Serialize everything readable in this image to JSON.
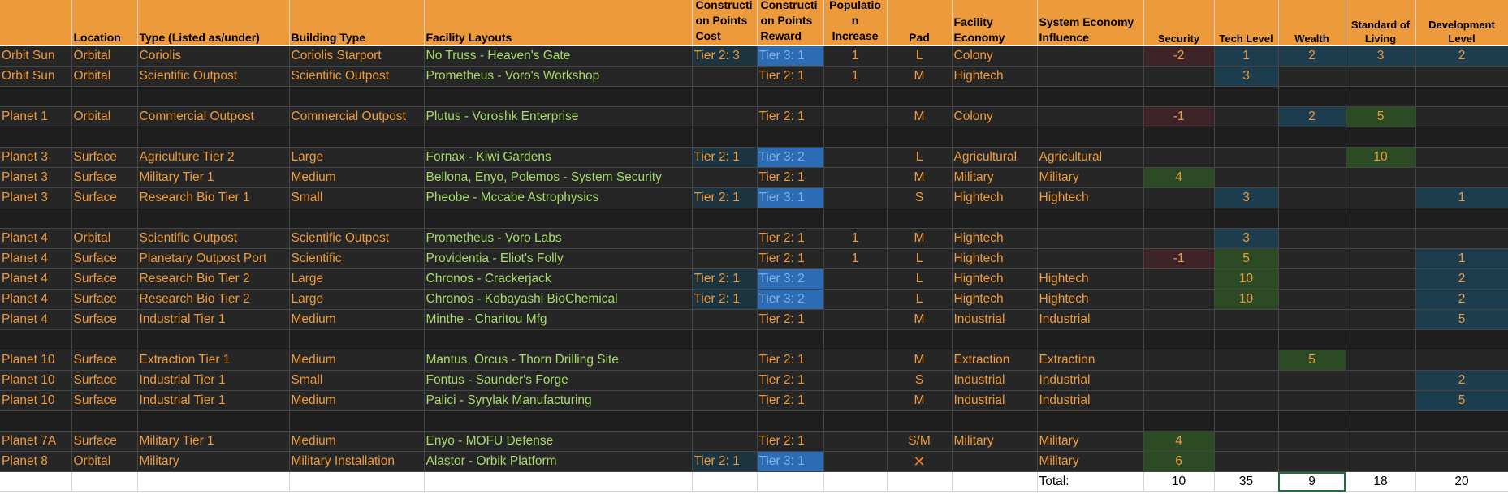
{
  "headers": {
    "col_a": "",
    "location": "Location",
    "type": "Type (Listed as/under)",
    "building": "Building Type",
    "layouts": "Facility Layouts",
    "cp_cost": "Constructi on Points Cost",
    "cp_reward": "Constructi on Points Reward",
    "pop": "Initial Populatio n Increase",
    "pad": "Pad",
    "economy": "Facility Economy",
    "influence": "System Economy Influence",
    "security": "Security",
    "tech": "Tech Level",
    "wealth": "Wealth",
    "sol": "Standard of Living",
    "dev": "Development Level"
  },
  "rows": [
    {
      "body": "Orbit Sun",
      "location": "Orbital",
      "type": "Coriolis",
      "building": "Coriolis Starport",
      "layout": "No Truss - Heaven's Gate",
      "cost": "Tier 2: 3",
      "reward": "Tier 3: 1",
      "pop": "1",
      "pad": "L",
      "economy": "Colony",
      "influence": "",
      "security": "-2",
      "tech": "1",
      "wealth": "2",
      "sol": "3",
      "dev": "2"
    },
    {
      "body": "Orbit Sun",
      "location": "Orbital",
      "type": "Scientific Outpost",
      "building": "Scientific Outpost",
      "layout": "Prometheus - Voro's Workshop",
      "cost": "",
      "reward": "Tier 2: 1",
      "pop": "1",
      "pad": "M",
      "economy": "Hightech",
      "influence": "",
      "security": "",
      "tech": "3",
      "wealth": "",
      "sol": "",
      "dev": ""
    },
    {
      "blank": true
    },
    {
      "body": "Planet 1",
      "location": "Orbital",
      "type": "Commercial Outpost",
      "building": "Commercial Outpost",
      "layout": "Plutus - Voroshk Enterprise",
      "cost": "",
      "reward": "Tier 2: 1",
      "pop": "",
      "pad": "M",
      "economy": "Colony",
      "influence": "",
      "security": "-1",
      "tech": "",
      "wealth": "2",
      "sol": "5",
      "dev": ""
    },
    {
      "blank": true
    },
    {
      "body": "Planet 3",
      "location": "Surface",
      "type": "Agriculture Tier 2",
      "building": "Large",
      "layout": "Fornax - Kiwi Gardens",
      "cost": "Tier 2: 1",
      "reward": "Tier 3: 2",
      "pop": "",
      "pad": "L",
      "economy": "Agricultural",
      "influence": "Agricultural",
      "security": "",
      "tech": "",
      "wealth": "",
      "sol": "10",
      "dev": ""
    },
    {
      "body": "Planet 3",
      "location": "Surface",
      "type": "Military Tier 1",
      "building": "Medium",
      "layout": "Bellona, Enyo, Polemos - System Security",
      "cost": "",
      "reward": "Tier 2: 1",
      "pop": "",
      "pad": "M",
      "economy": "Military",
      "influence": "Military",
      "security": "4",
      "tech": "",
      "wealth": "",
      "sol": "",
      "dev": ""
    },
    {
      "body": "Planet 3",
      "location": "Surface",
      "type": "Research Bio Tier 1",
      "building": "Small",
      "layout": "Pheobe - Mccabe Astrophysics",
      "cost": "Tier 2: 1",
      "reward": "Tier 3: 1",
      "pop": "",
      "pad": "S",
      "economy": "Hightech",
      "influence": "Hightech",
      "security": "",
      "tech": "3",
      "wealth": "",
      "sol": "",
      "dev": "1"
    },
    {
      "blank": true
    },
    {
      "body": "Planet 4",
      "location": "Orbital",
      "type": "Scientific Outpost",
      "building": "Scientific Outpost",
      "layout": "Prometheus - Voro Labs",
      "cost": "",
      "reward": "Tier 2: 1",
      "pop": "1",
      "pad": "M",
      "economy": "Hightech",
      "influence": "",
      "security": "",
      "tech": "3",
      "wealth": "",
      "sol": "",
      "dev": ""
    },
    {
      "body": "Planet 4",
      "location": "Surface",
      "type": "Planetary Outpost Port",
      "building": "Scientific",
      "layout": "Providentia - Eliot's Folly",
      "cost": "",
      "reward": "Tier 2: 1",
      "pop": "1",
      "pad": "L",
      "economy": "Hightech",
      "influence": "",
      "security": "-1",
      "tech": "5",
      "wealth": "",
      "sol": "",
      "dev": "1"
    },
    {
      "body": "Planet 4",
      "location": "Surface",
      "type": "Research Bio Tier 2",
      "building": "Large",
      "layout": "Chronos - Crackerjack",
      "cost": "Tier 2: 1",
      "reward": "Tier 3: 2",
      "pop": "",
      "pad": "L",
      "economy": "Hightech",
      "influence": "Hightech",
      "security": "",
      "tech": "10",
      "wealth": "",
      "sol": "",
      "dev": "2"
    },
    {
      "body": "Planet 4",
      "location": "Surface",
      "type": "Research Bio Tier 2",
      "building": "Large",
      "layout": "Chronos - Kobayashi BioChemical",
      "cost": "Tier 2: 1",
      "reward": "Tier 3: 2",
      "pop": "",
      "pad": "L",
      "economy": "Hightech",
      "influence": "Hightech",
      "security": "",
      "tech": "10",
      "wealth": "",
      "sol": "",
      "dev": "2"
    },
    {
      "body": "Planet 4",
      "location": "Surface",
      "type": "Industrial Tier 1",
      "building": "Medium",
      "layout": "Minthe - Charitou Mfg",
      "cost": "",
      "reward": "Tier 2: 1",
      "pop": "",
      "pad": "M",
      "economy": "Industrial",
      "influence": "Industrial",
      "security": "",
      "tech": "",
      "wealth": "",
      "sol": "",
      "dev": "5"
    },
    {
      "blank": true
    },
    {
      "body": "Planet 10",
      "location": "Surface",
      "type": "Extraction Tier 1",
      "building": "Medium",
      "layout": "Mantus, Orcus - Thorn Drilling Site",
      "cost": "",
      "reward": "Tier 2: 1",
      "pop": "",
      "pad": "M",
      "economy": "Extraction",
      "influence": "Extraction",
      "security": "",
      "tech": "",
      "wealth": "5",
      "sol": "",
      "dev": ""
    },
    {
      "body": "Planet 10",
      "location": "Surface",
      "type": "Industrial Tier 1",
      "building": "Small",
      "layout": "Fontus - Saunder's Forge",
      "cost": "",
      "reward": "Tier 2: 1",
      "pop": "",
      "pad": "S",
      "economy": "Industrial",
      "influence": "Industrial",
      "security": "",
      "tech": "",
      "wealth": "",
      "sol": "",
      "dev": "2"
    },
    {
      "body": "Planet 10",
      "location": "Surface",
      "type": "Industrial Tier 1",
      "building": "Medium",
      "layout": "Palici - Syrylak Manufacturing",
      "cost": "",
      "reward": "Tier 2: 1",
      "pop": "",
      "pad": "M",
      "economy": "Industrial",
      "influence": "Industrial",
      "security": "",
      "tech": "",
      "wealth": "",
      "sol": "",
      "dev": "5"
    },
    {
      "blank": true
    },
    {
      "body": "Planet 7A",
      "location": "Surface",
      "type": "Military Tier 1",
      "building": "Medium",
      "layout": "Enyo - MOFU Defense",
      "cost": "",
      "reward": "Tier 2: 1",
      "pop": "",
      "pad": "S/M",
      "economy": "Military",
      "influence": "Military",
      "security": "4",
      "tech": "",
      "wealth": "",
      "sol": "",
      "dev": ""
    },
    {
      "body": "Planet 8",
      "location": "Orbital",
      "type": "Military",
      "building": "Military Installation",
      "layout": "Alastor - Orbik Platform",
      "cost": "Tier 2: 1",
      "reward": "Tier 3: 1",
      "pop": "",
      "pad": "✕",
      "economy": "",
      "influence": "Military",
      "security": "6",
      "tech": "",
      "wealth": "",
      "sol": "",
      "dev": ""
    }
  ],
  "totals": {
    "label": "Total:",
    "security": "10",
    "tech": "35",
    "wealth": "9",
    "sol": "18",
    "dev": "20"
  },
  "colors": {
    "header_bg": "#ed9a3c",
    "row_bg": "#262626",
    "orange_text": "#ed9a3c",
    "green_text": "#a6d96a",
    "tier3_blue": "#2b6cb5",
    "negative_red": "#3e2428",
    "positive_green": "#2c4a24",
    "teal": "#1d3d4f"
  }
}
